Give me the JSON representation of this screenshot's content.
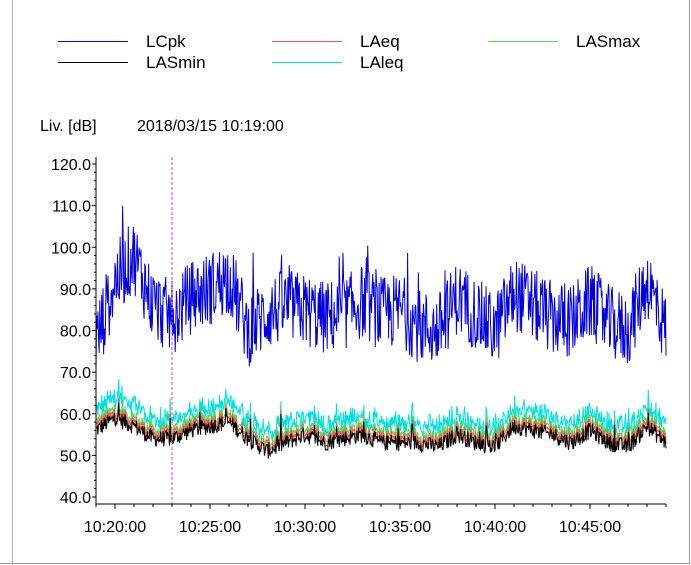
{
  "legend": [
    {
      "name": "LCpk",
      "color": "#0000e0"
    },
    {
      "name": "LAeq",
      "color": "#ff5050"
    },
    {
      "name": "LASmax",
      "color": "#50e050"
    },
    {
      "name": "LASmin",
      "color": "#000000"
    },
    {
      "name": "LAleq",
      "color": "#00e0e0"
    }
  ],
  "header": {
    "ylabel": "Liv. [dB]",
    "timestamp": "2018/03/15 10:19:00"
  },
  "chart_data": {
    "type": "line",
    "ylabel": "Liv. [dB]",
    "ylim": [
      40,
      120
    ],
    "yticks": [
      "120.0",
      "110.0",
      "100.0",
      "90.0",
      "80.0",
      "70.0",
      "60.0",
      "50.0",
      "40.0"
    ],
    "x_range": [
      "10:19:00",
      "10:49:00"
    ],
    "xticks": [
      "10:20:00",
      "10:25:00",
      "10:30:00",
      "10:35:00",
      "10:40:00",
      "10:45:00"
    ],
    "cursor_time": "10:23:00",
    "grid": false,
    "legend_position": "top",
    "x": [
      "10:19:00",
      "10:20:00",
      "10:21:00",
      "10:22:00",
      "10:23:00",
      "10:24:00",
      "10:25:00",
      "10:26:00",
      "10:27:00",
      "10:28:00",
      "10:29:00",
      "10:30:00",
      "10:31:00",
      "10:32:00",
      "10:33:00",
      "10:34:00",
      "10:35:00",
      "10:36:00",
      "10:37:00",
      "10:38:00",
      "10:39:00",
      "10:40:00",
      "10:41:00",
      "10:42:00",
      "10:43:00",
      "10:44:00",
      "10:45:00",
      "10:46:00",
      "10:47:00",
      "10:48:00",
      "10:49:00"
    ],
    "series": [
      {
        "name": "LCpk",
        "color": "#0000e0",
        "values": [
          77,
          92,
          98,
          86,
          83,
          88,
          90,
          93,
          80,
          84,
          86,
          85,
          83,
          84,
          87,
          84,
          85,
          81,
          80,
          88,
          84,
          80,
          89,
          86,
          83,
          82,
          87,
          82,
          80,
          92,
          80
        ]
      },
      {
        "name": "LAleq",
        "color": "#00e0e0",
        "values": [
          59,
          63,
          61,
          57,
          57,
          59,
          60,
          62,
          57,
          54,
          56,
          58,
          56,
          57,
          58,
          56,
          56,
          56,
          55,
          58,
          56,
          55,
          60,
          59,
          58,
          56,
          59,
          56,
          55,
          60,
          56
        ]
      },
      {
        "name": "LASmax",
        "color": "#50e050",
        "values": [
          58,
          61,
          59,
          56,
          56,
          58,
          59,
          60,
          56,
          53,
          55,
          57,
          55,
          56,
          57,
          55,
          55,
          55,
          54,
          57,
          55,
          54,
          59,
          58,
          57,
          55,
          58,
          55,
          54,
          59,
          55
        ]
      },
      {
        "name": "LAeq",
        "color": "#ff5050",
        "values": [
          57,
          60,
          58,
          55,
          55,
          57,
          58,
          59,
          55,
          52,
          54,
          56,
          54,
          55,
          56,
          54,
          54,
          54,
          53,
          56,
          54,
          53,
          58,
          57,
          56,
          54,
          57,
          54,
          53,
          58,
          54
        ]
      },
      {
        "name": "LASmin",
        "color": "#000000",
        "values": [
          56,
          59,
          57,
          54,
          54,
          56,
          57,
          58,
          54,
          51,
          53,
          55,
          53,
          54,
          55,
          53,
          53,
          53,
          52,
          55,
          53,
          52,
          57,
          56,
          55,
          53,
          56,
          53,
          52,
          57,
          53
        ]
      }
    ]
  }
}
